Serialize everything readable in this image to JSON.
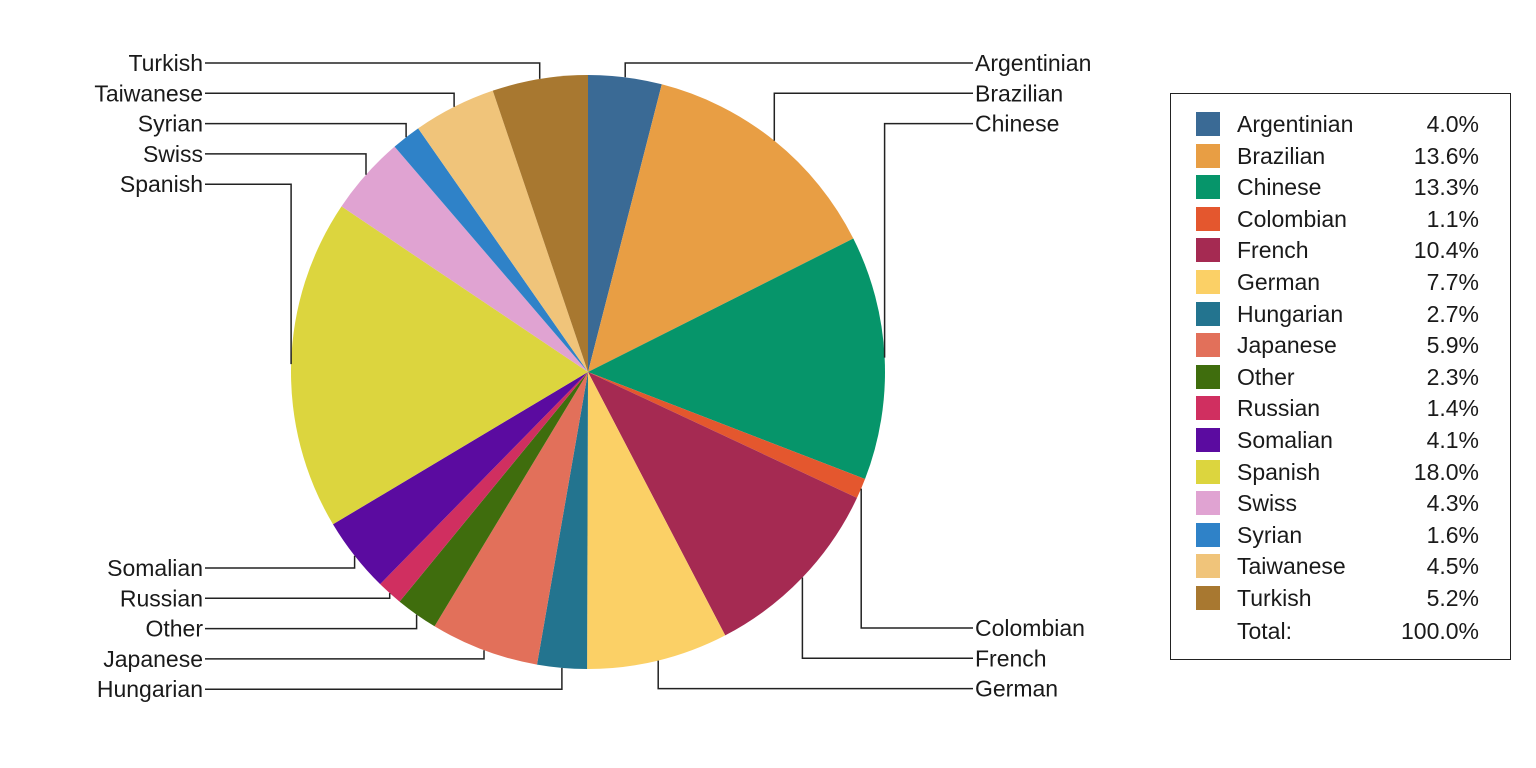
{
  "chart_data": {
    "type": "pie",
    "title": "",
    "start_angle": "top (12 o'clock)",
    "direction": "clockwise",
    "slices": [
      {
        "label": "Argentinian",
        "value": 4.0,
        "display": "4.0%",
        "color": "#3a6a95",
        "side": "right"
      },
      {
        "label": "Brazilian",
        "value": 13.6,
        "display": "13.6%",
        "color": "#e89e44",
        "side": "right"
      },
      {
        "label": "Chinese",
        "value": 13.3,
        "display": "13.3%",
        "color": "#06956a",
        "side": "right"
      },
      {
        "label": "Colombian",
        "value": 1.1,
        "display": "1.1%",
        "color": "#e4572e",
        "side": "right"
      },
      {
        "label": "French",
        "value": 10.4,
        "display": "10.4%",
        "color": "#a52a52",
        "side": "right"
      },
      {
        "label": "German",
        "value": 7.7,
        "display": "7.7%",
        "color": "#fbd066",
        "side": "right"
      },
      {
        "label": "Hungarian",
        "value": 2.7,
        "display": "2.7%",
        "color": "#23748f",
        "side": "left"
      },
      {
        "label": "Japanese",
        "value": 5.9,
        "display": "5.9%",
        "color": "#e2705a",
        "side": "left"
      },
      {
        "label": "Other",
        "value": 2.3,
        "display": "2.3%",
        "color": "#3f6d0d",
        "side": "left"
      },
      {
        "label": "Russian",
        "value": 1.4,
        "display": "1.4%",
        "color": "#d02f60",
        "side": "left"
      },
      {
        "label": "Somalian",
        "value": 4.1,
        "display": "4.1%",
        "color": "#5b0ba0",
        "side": "left"
      },
      {
        "label": "Spanish",
        "value": 18.0,
        "display": "18.0%",
        "color": "#dcd53e",
        "side": "left"
      },
      {
        "label": "Swiss",
        "value": 4.3,
        "display": "4.3%",
        "color": "#e0a3d2",
        "side": "left"
      },
      {
        "label": "Syrian",
        "value": 1.6,
        "display": "1.6%",
        "color": "#2f82c8",
        "side": "left"
      },
      {
        "label": "Taiwanese",
        "value": 4.5,
        "display": "4.5%",
        "color": "#f0c47a",
        "side": "left"
      },
      {
        "label": "Turkish",
        "value": 5.2,
        "display": "5.2%",
        "color": "#a87830",
        "side": "left"
      }
    ],
    "legend": {
      "placement": "right",
      "total_label": "Total:",
      "total_value": "100.0%"
    }
  }
}
